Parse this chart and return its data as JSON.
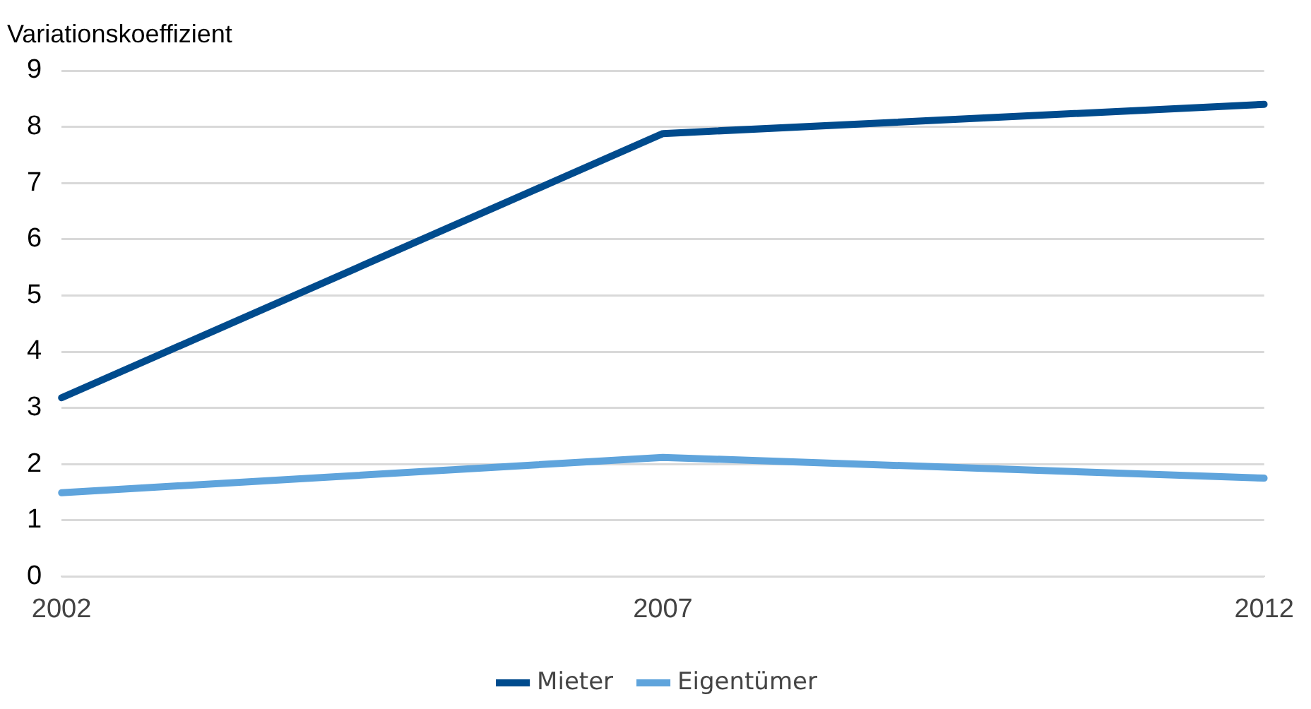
{
  "chart_data": {
    "type": "line",
    "ylabel": "Variationskoeffizient",
    "categories": [
      "2002",
      "2007",
      "2012"
    ],
    "series": [
      {
        "name": "Mieter",
        "color": "#004b8d",
        "values": [
          3.18,
          7.88,
          8.4
        ]
      },
      {
        "name": "Eigentümer",
        "color": "#5fa4dc",
        "values": [
          1.49,
          2.12,
          1.75
        ]
      }
    ],
    "ylim": [
      0,
      9
    ],
    "yticks": [
      0,
      1,
      2,
      3,
      4,
      5,
      6,
      7,
      8,
      9
    ],
    "grid": "y",
    "legend": "bottom",
    "marker": "none",
    "line_style": "solid"
  }
}
